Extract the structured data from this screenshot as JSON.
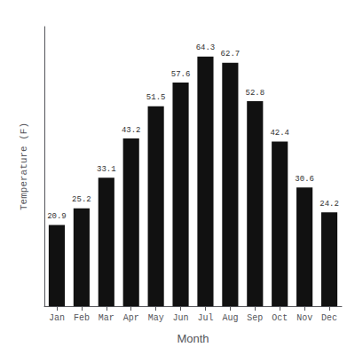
{
  "chart_data": {
    "type": "bar",
    "categories": [
      "Jan",
      "Feb",
      "Mar",
      "Apr",
      "May",
      "Jun",
      "Jul",
      "Aug",
      "Sep",
      "Oct",
      "Nov",
      "Dec"
    ],
    "values": [
      20.9,
      25.2,
      33.1,
      43.2,
      51.5,
      57.6,
      64.3,
      62.7,
      52.8,
      42.4,
      30.6,
      24.2
    ],
    "color": "#111111",
    "xlabel": "Month",
    "ylabel": "Temperature (F)",
    "ylim": [
      0,
      72
    ],
    "grid": false,
    "data_labels": true,
    "tick_labels": "x"
  }
}
